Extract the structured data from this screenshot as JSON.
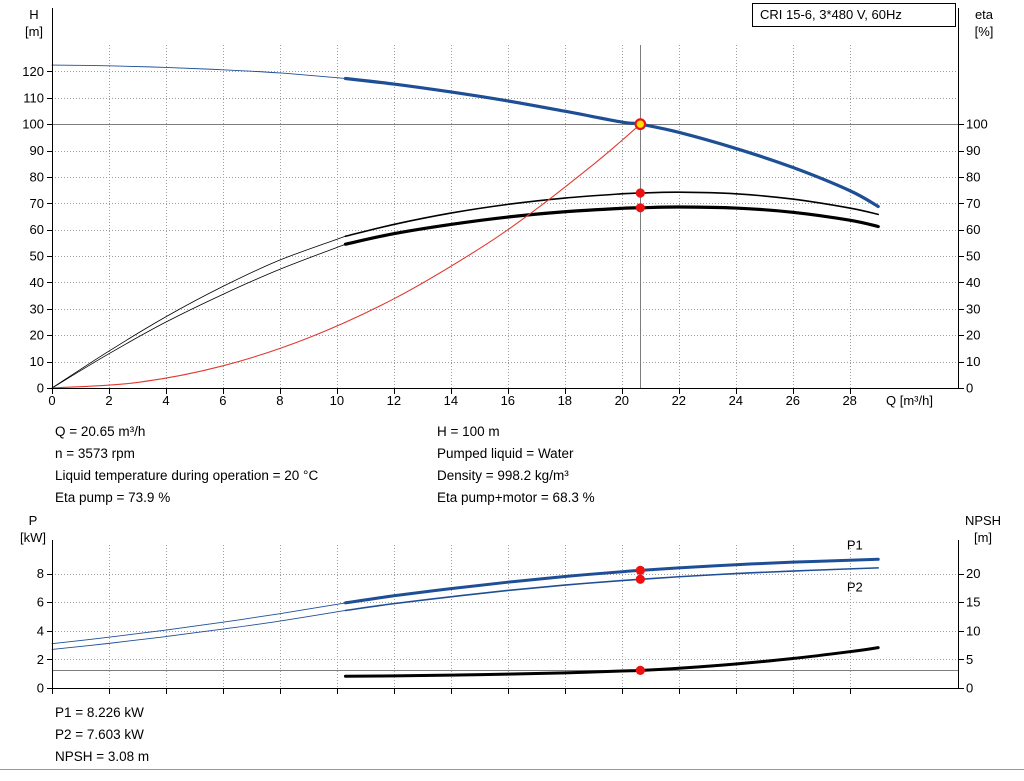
{
  "header": {
    "title_box": "CRI 15-6, 3*480 V, 60Hz"
  },
  "colors": {
    "curve_blue": "#1e4f96",
    "curve_black": "#000000",
    "curve_red": "#e03a30",
    "dot_red": "#ee1111",
    "op_point_fill": "#ffdf00",
    "grid": "#9f9f9f",
    "guide": "#7d7d7d",
    "label_blue": "#2e6bb8"
  },
  "chart_data": [
    {
      "type": "line",
      "name": "qh-eta-chart",
      "axes": {
        "x": {
          "label": "Q [m³/h]",
          "min": 0,
          "max": 31.8,
          "ticks": [
            0,
            2,
            4,
            6,
            8,
            10,
            12,
            14,
            16,
            18,
            20,
            22,
            24,
            26,
            28
          ],
          "show_labels": true
        },
        "left": {
          "name": "H",
          "unit": "[m]",
          "min": 0,
          "max": 130,
          "ticks": [
            0,
            10,
            20,
            30,
            40,
            50,
            60,
            70,
            80,
            90,
            100,
            110,
            120
          ]
        },
        "right": {
          "name": "eta",
          "unit": "[%]",
          "min": 0,
          "max": 130,
          "ticks": [
            0,
            10,
            20,
            30,
            40,
            50,
            60,
            70,
            80,
            90,
            100
          ]
        }
      },
      "series": [
        {
          "name": "head-curve-extension",
          "color": "curve_blue",
          "width": 0.9,
          "axis": "left",
          "points": [
            [
              0,
              122.4
            ],
            [
              2,
              122.1
            ],
            [
              4,
              121.5
            ],
            [
              6,
              120.6
            ],
            [
              8,
              119.4
            ],
            [
              10.3,
              117.3
            ]
          ]
        },
        {
          "name": "head-curve",
          "color": "curve_blue",
          "width": 3.2,
          "axis": "left",
          "points": [
            [
              10.3,
              117.3
            ],
            [
              12,
              115.2
            ],
            [
              14,
              112.2
            ],
            [
              16,
              108.8
            ],
            [
              18,
              104.9
            ],
            [
              20,
              100.8
            ],
            [
              20.65,
              100
            ],
            [
              22,
              96.9
            ],
            [
              24,
              90.8
            ],
            [
              26,
              83.6
            ],
            [
              28,
              74.8
            ],
            [
              29,
              68.8
            ]
          ]
        },
        {
          "name": "eta-pump-curve-extension",
          "color": "curve_black",
          "width": 0.8,
          "axis": "right",
          "points": [
            [
              0,
              0
            ],
            [
              2,
              14
            ],
            [
              4,
              27
            ],
            [
              6,
              38.5
            ],
            [
              8,
              48.5
            ],
            [
              10.3,
              57.5
            ]
          ]
        },
        {
          "name": "eta-pump-curve",
          "color": "curve_black",
          "width": 1.6,
          "axis": "right",
          "points": [
            [
              10.3,
              57.5
            ],
            [
              12,
              62
            ],
            [
              14,
              66.3
            ],
            [
              16,
              69.6
            ],
            [
              18,
              72
            ],
            [
              20,
              73.6
            ],
            [
              20.65,
              73.9
            ],
            [
              22,
              74.2
            ],
            [
              24,
              73.6
            ],
            [
              26,
              71.6
            ],
            [
              28,
              68.2
            ],
            [
              29,
              65.8
            ]
          ]
        },
        {
          "name": "eta-pump-motor-curve-extension",
          "color": "curve_black",
          "width": 0.8,
          "axis": "right",
          "points": [
            [
              0,
              0
            ],
            [
              2,
              13
            ],
            [
              4,
              25
            ],
            [
              6,
              35.5
            ],
            [
              8,
              45
            ],
            [
              10.3,
              54.5
            ]
          ]
        },
        {
          "name": "eta-pump-motor-curve",
          "color": "curve_black",
          "width": 3.2,
          "axis": "right",
          "points": [
            [
              10.3,
              54.5
            ],
            [
              12,
              58.5
            ],
            [
              14,
              62
            ],
            [
              16,
              64.8
            ],
            [
              18,
              66.8
            ],
            [
              20,
              68.1
            ],
            [
              20.65,
              68.3
            ],
            [
              22,
              68.6
            ],
            [
              24,
              68.2
            ],
            [
              26,
              66.6
            ],
            [
              28,
              63.6
            ],
            [
              29,
              61.2
            ]
          ]
        },
        {
          "name": "system-curve",
          "color": "curve_red",
          "width": 1.1,
          "axis": "left",
          "points": [
            [
              0,
              0
            ],
            [
              3,
              2.1
            ],
            [
              6,
              8.4
            ],
            [
              9,
              19
            ],
            [
              12,
              33.8
            ],
            [
              15,
              52.8
            ],
            [
              17,
              67.8
            ],
            [
              19,
              84.7
            ],
            [
              20,
              93.8
            ],
            [
              20.65,
              100
            ]
          ]
        }
      ],
      "guides": [
        {
          "orient": "v",
          "q": 20.65
        },
        {
          "orient": "h",
          "value": 100,
          "axis": "left"
        }
      ],
      "markers": [
        {
          "name": "eta-pump-point",
          "style": "dot",
          "q": 20.65,
          "value": 73.9,
          "axis": "right"
        },
        {
          "name": "eta-pump-motor-point",
          "style": "dot",
          "q": 20.65,
          "value": 68.3,
          "axis": "right"
        },
        {
          "name": "duty-point",
          "style": "op",
          "q": 20.65,
          "value": 100,
          "axis": "left"
        }
      ],
      "labels": []
    },
    {
      "type": "line",
      "name": "power-npsh-chart",
      "axes": {
        "x": {
          "label": "",
          "min": 0,
          "max": 31.8,
          "ticks": [
            0,
            2,
            4,
            6,
            8,
            10,
            12,
            14,
            16,
            18,
            20,
            22,
            24,
            26,
            28
          ],
          "show_labels": false
        },
        "left": {
          "name": "P",
          "unit": "[kW]",
          "min": 0,
          "max": 10,
          "ticks": [
            0,
            2,
            4,
            6,
            8
          ]
        },
        "right": {
          "name": "NPSH",
          "unit": "[m]",
          "min": 0,
          "max": 25,
          "ticks": [
            0,
            5,
            10,
            15,
            20
          ]
        }
      },
      "series": [
        {
          "name": "p1-curve-extension",
          "color": "curve_blue",
          "width": 0.9,
          "axis": "left",
          "points": [
            [
              0,
              3.1
            ],
            [
              2,
              3.55
            ],
            [
              4,
              4.05
            ],
            [
              6,
              4.6
            ],
            [
              8,
              5.2
            ],
            [
              10.3,
              5.95
            ]
          ]
        },
        {
          "name": "p1-curve",
          "color": "curve_blue",
          "width": 3,
          "axis": "left",
          "points": [
            [
              10.3,
              5.95
            ],
            [
              12,
              6.45
            ],
            [
              14,
              6.95
            ],
            [
              16,
              7.4
            ],
            [
              18,
              7.8
            ],
            [
              20,
              8.13
            ],
            [
              20.65,
              8.226
            ],
            [
              22,
              8.4
            ],
            [
              24,
              8.62
            ],
            [
              26,
              8.8
            ],
            [
              28,
              8.93
            ],
            [
              29,
              9
            ]
          ]
        },
        {
          "name": "p2-curve-extension",
          "color": "curve_blue",
          "width": 0.9,
          "axis": "left",
          "points": [
            [
              0,
              2.7
            ],
            [
              2,
              3.12
            ],
            [
              4,
              3.6
            ],
            [
              6,
              4.12
            ],
            [
              8,
              4.68
            ],
            [
              10.3,
              5.42
            ]
          ]
        },
        {
          "name": "p2-curve",
          "color": "curve_blue",
          "width": 1.6,
          "axis": "left",
          "points": [
            [
              10.3,
              5.42
            ],
            [
              12,
              5.9
            ],
            [
              14,
              6.38
            ],
            [
              16,
              6.82
            ],
            [
              18,
              7.2
            ],
            [
              20,
              7.51
            ],
            [
              20.65,
              7.603
            ],
            [
              22,
              7.78
            ],
            [
              24,
              8
            ],
            [
              26,
              8.18
            ],
            [
              28,
              8.33
            ],
            [
              29,
              8.4
            ]
          ]
        },
        {
          "name": "npsh-curve",
          "color": "curve_black",
          "width": 3,
          "axis": "right",
          "points": [
            [
              10.3,
              2.05
            ],
            [
              12,
              2.12
            ],
            [
              14,
              2.25
            ],
            [
              16,
              2.42
            ],
            [
              18,
              2.65
            ],
            [
              20,
              2.97
            ],
            [
              20.65,
              3.08
            ],
            [
              22,
              3.45
            ],
            [
              24,
              4.2
            ],
            [
              26,
              5.15
            ],
            [
              28,
              6.35
            ],
            [
              29,
              7.05
            ]
          ]
        }
      ],
      "guides": [
        {
          "orient": "h",
          "value": 3.08,
          "axis": "right"
        }
      ],
      "markers": [
        {
          "name": "p1-point",
          "style": "dot",
          "q": 20.65,
          "value": 8.226,
          "axis": "left"
        },
        {
          "name": "p2-point",
          "style": "dot",
          "q": 20.65,
          "value": 7.603,
          "axis": "left"
        },
        {
          "name": "npsh-point",
          "style": "dot",
          "q": 20.65,
          "value": 3.08,
          "axis": "right"
        }
      ],
      "labels": [
        {
          "text": "P1",
          "q": 27.9,
          "value": 9.7,
          "color": "label_blue"
        },
        {
          "text": "P2",
          "q": 27.9,
          "value": 6.75,
          "color": "label_blue"
        }
      ]
    }
  ],
  "duty_info": {
    "col1": [
      "Q = 20.65 m³/h",
      "n = 3573 rpm",
      "Liquid temperature during operation = 20 °C",
      "Eta pump = 73.9 %"
    ],
    "col2": [
      "H = 100 m",
      "Pumped liquid = Water",
      "Density = 998.2 kg/m³",
      "Eta pump+motor = 68.3 %"
    ]
  },
  "power_info": [
    "P1 = 8.226 kW",
    "P2 = 7.603 kW",
    "NPSH = 3.08 m"
  ]
}
